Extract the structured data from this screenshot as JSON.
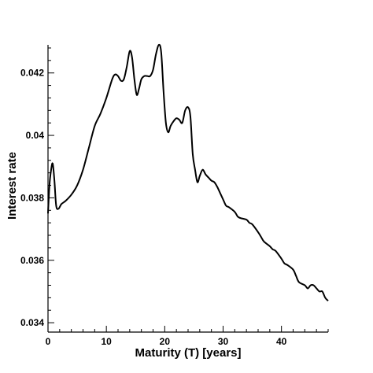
{
  "chart_data": {
    "type": "line",
    "title": "",
    "xlabel": "Maturity (T) [years]",
    "ylabel": "Interest rate",
    "xlim": [
      0,
      48
    ],
    "ylim": [
      0.0337,
      0.0429
    ],
    "x_ticks": [
      0,
      10,
      20,
      30,
      40
    ],
    "x_tick_labels": [
      "0",
      "10",
      "20",
      "30",
      "40"
    ],
    "y_ticks": [
      0.034,
      0.036,
      0.038,
      0.04,
      0.042
    ],
    "y_tick_labels": [
      "0.034",
      "0.036",
      "0.038",
      "0.04",
      "0.042"
    ],
    "grid": false,
    "legend": "none",
    "line_color": "#000000",
    "series": [
      {
        "x": [
          0,
          0.25,
          0.5,
          0.8,
          1.1,
          1.4,
          1.8,
          2.3,
          3,
          4,
          5,
          6,
          7,
          8,
          9,
          10,
          11,
          11.5,
          12,
          12.5,
          13,
          13.5,
          14,
          14.4,
          14.8,
          15.2,
          15.6,
          16,
          16.5,
          17,
          17.5,
          18,
          18.5,
          19,
          19.4,
          19.8,
          20.2,
          20.6,
          21,
          21.5,
          22,
          22.5,
          23,
          23.5,
          24,
          24.4,
          24.8,
          25.2,
          25.6,
          26,
          26.5,
          27,
          27.5,
          28,
          28.5,
          29,
          29.5,
          30,
          30.5,
          31,
          32,
          32.5,
          33,
          34,
          34.5,
          35,
          36,
          36.5,
          37,
          38,
          38.5,
          39,
          40,
          40.5,
          41,
          42,
          42.5,
          43,
          44,
          44.5,
          45,
          45.5,
          46,
          46.5,
          47,
          47.5,
          48
        ],
        "y": [
          0.0375,
          0.0384,
          0.03885,
          0.0391,
          0.03855,
          0.03775,
          0.03765,
          0.0378,
          0.0379,
          0.0381,
          0.0384,
          0.0389,
          0.0396,
          0.0403,
          0.0407,
          0.0412,
          0.0418,
          0.04195,
          0.0419,
          0.04175,
          0.0418,
          0.0422,
          0.0427,
          0.0425,
          0.0418,
          0.0413,
          0.0415,
          0.0418,
          0.0419,
          0.0419,
          0.0419,
          0.0421,
          0.0426,
          0.0429,
          0.04265,
          0.0414,
          0.0404,
          0.0401,
          0.0403,
          0.04045,
          0.04055,
          0.0405,
          0.0404,
          0.0408,
          0.0409,
          0.0406,
          0.0394,
          0.0389,
          0.0385,
          0.0387,
          0.0389,
          0.03875,
          0.03865,
          0.03855,
          0.0385,
          0.03835,
          0.03815,
          0.03795,
          0.03775,
          0.0377,
          0.03755,
          0.0374,
          0.03735,
          0.0373,
          0.0372,
          0.03715,
          0.0369,
          0.03675,
          0.0366,
          0.03645,
          0.03635,
          0.0363,
          0.03605,
          0.0359,
          0.03585,
          0.0357,
          0.0355,
          0.0353,
          0.0352,
          0.0351,
          0.0352,
          0.0352,
          0.0351,
          0.035,
          0.035,
          0.0348,
          0.0347
        ]
      }
    ]
  }
}
